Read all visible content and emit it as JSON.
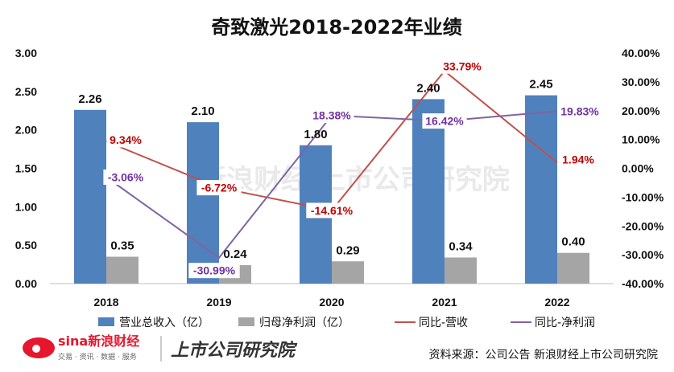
{
  "chart_data": {
    "type": "bar",
    "title": "奇致激光2018-2022年业绩",
    "categories": [
      "2018",
      "2019",
      "2020",
      "2021",
      "2022"
    ],
    "series": [
      {
        "name": "营业总收入（亿）",
        "kind": "bar",
        "axis": "left",
        "color": "#4f81bd",
        "values": [
          2.26,
          2.1,
          1.8,
          2.4,
          2.45
        ],
        "labels": [
          "2.26",
          "2.10",
          "1.80",
          "2.40",
          "2.45"
        ]
      },
      {
        "name": "归母净利润（亿）",
        "kind": "bar",
        "axis": "left",
        "color": "#a5a5a5",
        "values": [
          0.35,
          0.24,
          0.29,
          0.34,
          0.4
        ],
        "labels": [
          "0.35",
          "0.24",
          "0.29",
          "0.34",
          "0.40"
        ]
      },
      {
        "name": "同比-营收",
        "kind": "line",
        "axis": "right",
        "color": "#c0504d",
        "label_color": "#c00000",
        "values": [
          9.34,
          -6.72,
          -14.61,
          33.79,
          1.94
        ],
        "labels": [
          "9.34%",
          "-6.72%",
          "-14.61%",
          "33.79%",
          "1.94%"
        ]
      },
      {
        "name": "同比-净利润",
        "kind": "line",
        "axis": "right",
        "color": "#8064a2",
        "label_color": "#7030a0",
        "values": [
          -3.06,
          -30.99,
          18.38,
          16.42,
          19.83
        ],
        "labels": [
          "-3.06%",
          "-30.99%",
          "18.38%",
          "16.42%",
          "19.83%"
        ]
      }
    ],
    "y_left": {
      "min": 0,
      "max": 3,
      "step": 0.5,
      "ticks": [
        "0.00",
        "0.50",
        "1.00",
        "1.50",
        "2.00",
        "2.50",
        "3.00"
      ]
    },
    "y_right": {
      "min": -40,
      "max": 40,
      "step": 10,
      "ticks": [
        "-40.00%",
        "-30.00%",
        "-20.00%",
        "-10.00%",
        "0.00%",
        "10.00%",
        "20.00%",
        "30.00%",
        "40.00%"
      ]
    },
    "legend_position": "bottom",
    "grid": false
  },
  "footer": {
    "source": "资料来源：公司公告 新浪财经上市公司研究院",
    "logo_text": "sina新浪财经",
    "logo_sub": "交易 · 资讯 · 数据 · 服务",
    "institute_text": "上市公司研究院"
  },
  "watermark": "新浪财经 上市公司研究院"
}
